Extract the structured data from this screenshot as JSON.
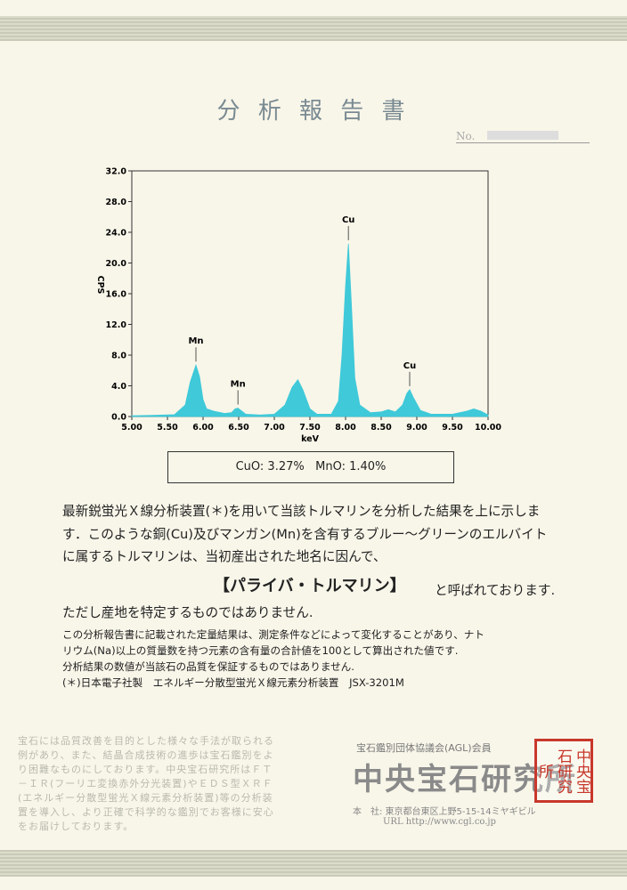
{
  "header": {
    "title": "分 析 報 告 書",
    "number_label": "No."
  },
  "chart_data": {
    "type": "area",
    "x_label": "keV",
    "y_label": "CPS",
    "color": "#3fc9d9",
    "x": [
      5.0,
      5.3,
      5.6,
      5.75,
      5.82,
      5.9,
      5.95,
      6.0,
      6.05,
      6.15,
      6.3,
      6.4,
      6.45,
      6.49,
      6.53,
      6.6,
      6.8,
      7.0,
      7.15,
      7.25,
      7.33,
      7.4,
      7.5,
      7.6,
      7.8,
      7.9,
      7.95,
      8.0,
      8.04,
      8.08,
      8.13,
      8.2,
      8.35,
      8.5,
      8.6,
      8.7,
      8.8,
      8.86,
      8.9,
      8.95,
      9.05,
      9.2,
      9.5,
      9.7,
      9.8,
      9.9,
      10.0
    ],
    "values": [
      0.1,
      0.15,
      0.25,
      1.5,
      4.5,
      6.7,
      5.2,
      2.2,
      1.0,
      0.7,
      0.4,
      0.5,
      1.0,
      1.1,
      0.8,
      0.3,
      0.2,
      0.3,
      1.5,
      3.8,
      4.8,
      3.5,
      1.0,
      0.3,
      0.3,
      2.0,
      8.0,
      17.0,
      22.5,
      15.0,
      5.0,
      1.5,
      0.5,
      0.6,
      0.9,
      0.6,
      1.5,
      3.0,
      3.5,
      2.5,
      0.8,
      0.3,
      0.3,
      0.7,
      1.0,
      0.7,
      0.2
    ],
    "peaks": [
      {
        "label": "Mn",
        "x": 5.9,
        "y": 6.7
      },
      {
        "label": "Mn",
        "x": 6.49,
        "y": 1.1
      },
      {
        "label": "Cu",
        "x": 8.04,
        "y": 22.5
      },
      {
        "label": "Cu",
        "x": 8.9,
        "y": 3.5
      }
    ],
    "xlim": [
      5.0,
      10.0
    ],
    "xticks": [
      {
        "value": 5.0,
        "label": "5.00"
      },
      {
        "value": 5.5,
        "label": "5.50"
      },
      {
        "value": 6.0,
        "label": "6.00"
      },
      {
        "value": 6.5,
        "label": "6.50"
      },
      {
        "value": 7.0,
        "label": "7.00"
      },
      {
        "value": 7.5,
        "label": "7.50"
      },
      {
        "value": 8.0,
        "label": "8.00"
      },
      {
        "value": 8.5,
        "label": "8.50"
      },
      {
        "value": 9.0,
        "label": "9.00"
      },
      {
        "value": 9.5,
        "label": "9.50"
      },
      {
        "value": 10.0,
        "label": "10.00"
      }
    ],
    "ylim": [
      0,
      32
    ],
    "yticks": [
      {
        "value": 0,
        "label": "0.0"
      },
      {
        "value": 4,
        "label": "4.0"
      },
      {
        "value": 8,
        "label": "8.0"
      },
      {
        "value": 12,
        "label": "12.0"
      },
      {
        "value": 16,
        "label": "16.0"
      },
      {
        "value": 20,
        "label": "20.0"
      },
      {
        "value": 24,
        "label": "24.0"
      },
      {
        "value": 28,
        "label": "28.0"
      },
      {
        "value": 32,
        "label": "32.0"
      }
    ]
  },
  "result": "CuO: 3.27%   MnO: 1.40%",
  "body": {
    "lines": [
      "最新鋭蛍光Ｘ線分析装置(＊)を用いて当該トルマリンを分析した結果を上に示しま",
      "す．このような銅(Cu)及びマンガン(Mn)を含有するブルー～グリーンのエルバイト",
      "に属するトルマリンは、当初産出された地名に因んで、"
    ],
    "name": "【パライバ・トルマリン】",
    "name_suffix": "と呼ばれております.",
    "closing": "ただし産地を特定するものではありません."
  },
  "notes": [
    "この分析報告書に記載された定量結果は、測定条件などによって変化することがあり、ナト",
    "リウム(Na)以上の質量数を持つ元素の含有量の合計値を100として算出された値です.",
    "分析結果の数値が当該石の品質を保証するものではありません.",
    "(＊)日本電子社製　エネルギー分散型蛍光Ｘ線元素分析装置　JSX-3201M"
  ],
  "footer": {
    "disclaimer": [
      "宝石には品質改善を目的とした様々な手法が取られる",
      "例があり、また、結晶合成技術の進歩は宝石鑑別をよ",
      "り困難なものにしております。中央宝石研究所はＦＴ",
      "－ＩＲ(フーリエ変換赤外分光装置)やＥＤＳ型ＸＲＦ",
      "(エネルギー分散型蛍光Ｘ線元素分析装置)等の分析装",
      "置を導入し、より正確で科学的な鑑別でお客様に安心",
      "をお届けしております。"
    ],
    "membership": "宝石鑑別団体協議会(AGL)会員",
    "company": "中央宝石研究所",
    "address": "本　社: 東京都台東区上野5-15-14ミヤギビル",
    "url": "URL http://www.cgl.co.jp",
    "seal": "中央宝石研究所"
  }
}
